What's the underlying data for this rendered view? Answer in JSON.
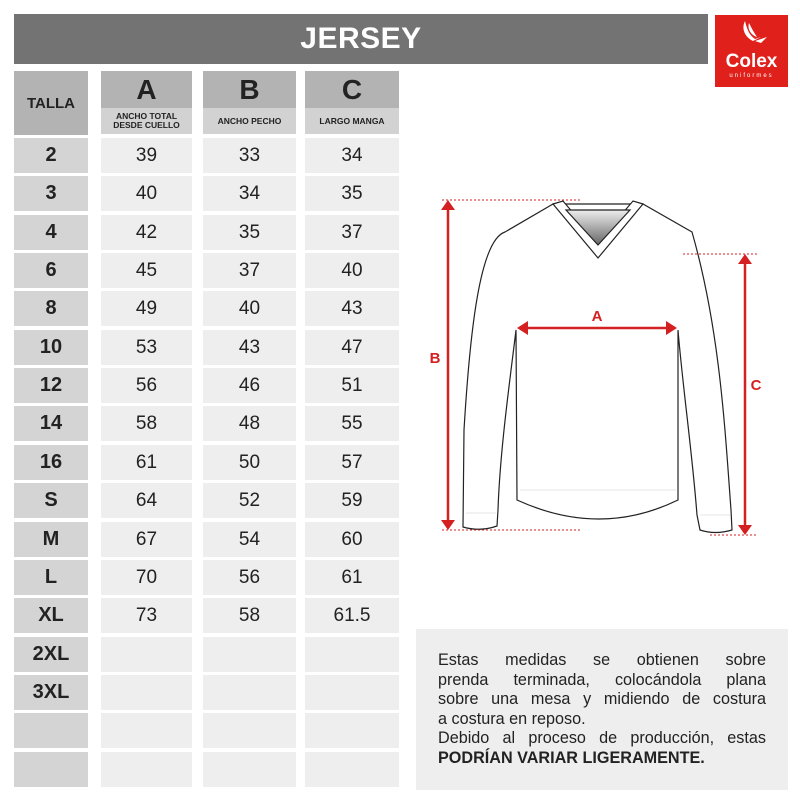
{
  "title": "JERSEY",
  "logo": {
    "name": "Colex",
    "sub": "uniformes",
    "color": "#e0201b"
  },
  "table": {
    "size_header": "TALLA",
    "columns": [
      {
        "letter": "A",
        "label": "ANCHO TOTAL DESDE CUELLO"
      },
      {
        "letter": "B",
        "label": "ANCHO PECHO"
      },
      {
        "letter": "C",
        "label": "LARGO MANGA"
      }
    ],
    "rows": [
      {
        "size": "2",
        "a": "39",
        "b": "33",
        "c": "34"
      },
      {
        "size": "3",
        "a": "40",
        "b": "34",
        "c": "35"
      },
      {
        "size": "4",
        "a": "42",
        "b": "35",
        "c": "37"
      },
      {
        "size": "6",
        "a": "45",
        "b": "37",
        "c": "40"
      },
      {
        "size": "8",
        "a": "49",
        "b": "40",
        "c": "43"
      },
      {
        "size": "10",
        "a": "53",
        "b": "43",
        "c": "47"
      },
      {
        "size": "12",
        "a": "56",
        "b": "46",
        "c": "51"
      },
      {
        "size": "14",
        "a": "58",
        "b": "48",
        "c": "55"
      },
      {
        "size": "16",
        "a": "61",
        "b": "50",
        "c": "57"
      },
      {
        "size": "S",
        "a": "64",
        "b": "52",
        "c": "59"
      },
      {
        "size": "M",
        "a": "67",
        "b": "54",
        "c": "60"
      },
      {
        "size": "L",
        "a": "70",
        "b": "56",
        "c": "61"
      },
      {
        "size": "XL",
        "a": "73",
        "b": "58",
        "c": "61.5"
      },
      {
        "size": "2XL",
        "a": "",
        "b": "",
        "c": ""
      },
      {
        "size": "3XL",
        "a": "",
        "b": "",
        "c": ""
      },
      {
        "size": "",
        "a": "",
        "b": "",
        "c": ""
      },
      {
        "size": "",
        "a": "",
        "b": "",
        "c": ""
      }
    ]
  },
  "diagram": {
    "label_a": "A",
    "label_b": "B",
    "label_c": "C",
    "accent": "#d42020"
  },
  "note": {
    "lines": [
      "Estas medidas se obtienen sobre",
      "prenda terminada, colocándola plana",
      "sobre una mesa y midiendo de costura",
      "a costura en reposo.",
      "Debido al proceso de producción, estas"
    ],
    "bold": "PODRÍAN VARIAR LIGERAMENTE."
  }
}
